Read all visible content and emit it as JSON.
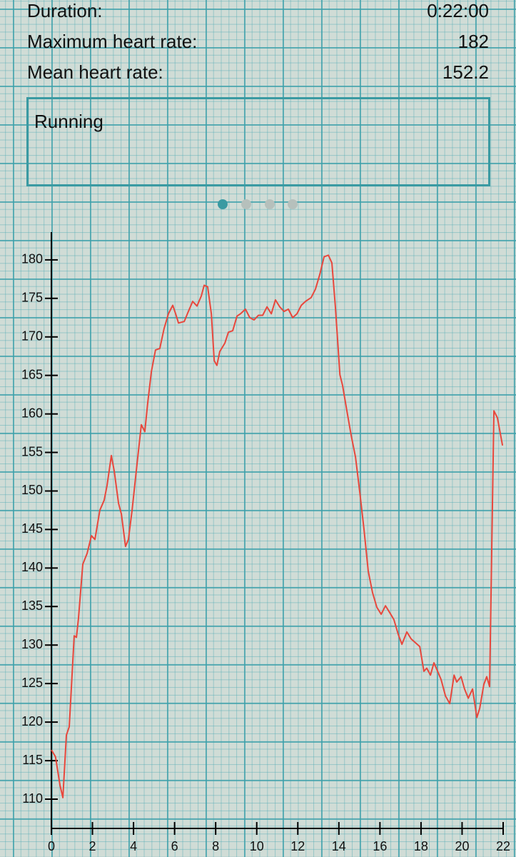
{
  "summary": {
    "rows": [
      [
        "Duration:",
        "0:22:00"
      ],
      [
        "Maximum heart rate:",
        "182"
      ],
      [
        "Mean heart rate:",
        "152.2"
      ]
    ]
  },
  "note": "Running",
  "chart_data": {
    "type": "line",
    "x": [
      0,
      0.2,
      0.42,
      0.56,
      0.73,
      0.87,
      1.11,
      1.22,
      1.32,
      1.53,
      1.74,
      1.95,
      2.12,
      2.36,
      2.57,
      2.71,
      2.92,
      3.06,
      3.27,
      3.41,
      3.61,
      3.75,
      3.93,
      4.17,
      4.38,
      4.55,
      4.69,
      4.87,
      5.07,
      5.28,
      5.49,
      5.7,
      5.91,
      6.05,
      6.19,
      6.47,
      6.67,
      6.88,
      7.09,
      7.3,
      7.44,
      7.61,
      7.79,
      7.93,
      8.06,
      8.2,
      8.45,
      8.62,
      8.83,
      9.04,
      9.21,
      9.45,
      9.66,
      9.87,
      10.08,
      10.29,
      10.5,
      10.71,
      10.91,
      11.12,
      11.33,
      11.54,
      11.75,
      11.96,
      12.17,
      12.37,
      12.65,
      12.86,
      13.07,
      13.28,
      13.49,
      13.66,
      13.83,
      14.05,
      14.18,
      14.39,
      14.6,
      14.81,
      15.02,
      15.22,
      15.43,
      15.64,
      15.85,
      16.06,
      16.27,
      16.48,
      16.68,
      16.89,
      17.07,
      17.31,
      17.52,
      17.73,
      17.94,
      18.14,
      18.28,
      18.46,
      18.63,
      18.84,
      18.98,
      19.19,
      19.4,
      19.61,
      19.74,
      19.95,
      20.12,
      20.3,
      20.51,
      20.72,
      20.86,
      21.06,
      21.2,
      21.34,
      21.55,
      21.72,
      21.97
    ],
    "series": [
      {
        "color": "#e8473c",
        "values": [
          116.4,
          115.5,
          111.8,
          110.2,
          118.3,
          119.4,
          131.2,
          131,
          133.5,
          140.5,
          141.9,
          144.2,
          143.7,
          147.5,
          148.8,
          150.7,
          154.6,
          152.6,
          148.4,
          147,
          142.8,
          143.7,
          147.5,
          153.5,
          158.6,
          157.7,
          161.4,
          165.5,
          168.3,
          168.5,
          171.1,
          173,
          174.1,
          173,
          171.8,
          172,
          173.3,
          174.6,
          174,
          175.3,
          176.7,
          176.5,
          173,
          166.9,
          166.3,
          168.1,
          169.2,
          170.6,
          170.8,
          172.7,
          173,
          173.6,
          172.5,
          172.2,
          172.8,
          172.8,
          173.9,
          173,
          174.8,
          173.9,
          173.3,
          173.6,
          172.5,
          173,
          174.1,
          174.6,
          175.1,
          176.2,
          178.1,
          180.4,
          180.6,
          179.6,
          173.9,
          165.1,
          163.7,
          160.4,
          157.2,
          154.4,
          149.8,
          145.1,
          139.6,
          136.8,
          134.9,
          134,
          135.1,
          134.2,
          133.3,
          131.4,
          130.1,
          131.7,
          130.8,
          130.3,
          129.8,
          126.6,
          127,
          126.1,
          127.7,
          126.4,
          125.5,
          123.4,
          122.4,
          126.1,
          125.2,
          125.9,
          124.3,
          123.1,
          124.3,
          120.6,
          121.8,
          124.9,
          125.9,
          124.6,
          160.4,
          159.5,
          155.9
        ]
      }
    ],
    "xlim": [
      0,
      22
    ],
    "xticks": [
      0,
      2,
      4,
      6,
      8,
      10,
      12,
      14,
      16,
      18,
      20,
      22
    ],
    "ylim": [
      106.2,
      183.6
    ],
    "yticks": [
      110,
      115,
      120,
      125,
      130,
      135,
      140,
      145,
      150,
      155,
      160,
      165,
      170,
      175,
      180
    ]
  }
}
